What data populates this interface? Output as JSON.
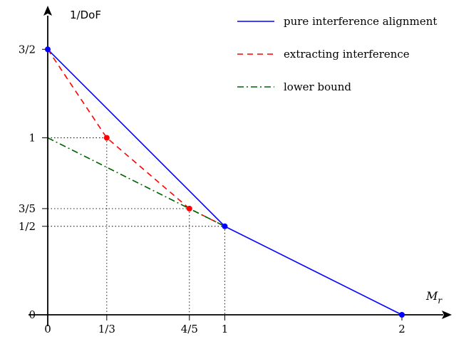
{
  "chart_data": {
    "type": "line",
    "xlabel": "M",
    "xlabel_sub": "r",
    "ylabel": "1/DoF",
    "xlim": [
      0,
      2.2
    ],
    "ylim": [
      0,
      1.5
    ],
    "grid": false,
    "legend_position": "top-right",
    "x_ticks": [
      {
        "value": 0,
        "label": "0"
      },
      {
        "value": 0.3333,
        "label": "1/3"
      },
      {
        "value": 0.8,
        "label": "4/5"
      },
      {
        "value": 1,
        "label": "1"
      },
      {
        "value": 2,
        "label": "2"
      }
    ],
    "y_ticks": [
      {
        "value": 0,
        "label": "0"
      },
      {
        "value": 0.5,
        "label": "1/2"
      },
      {
        "value": 0.6,
        "label": "3/5"
      },
      {
        "value": 1,
        "label": "1"
      },
      {
        "value": 1.5,
        "label": "3/2"
      }
    ],
    "series": [
      {
        "name": "pure interference alignment",
        "color": "#0000ff",
        "style": "solid",
        "points": [
          [
            0,
            1.5
          ],
          [
            1,
            0.5
          ],
          [
            2,
            0
          ]
        ],
        "markers": [
          [
            0,
            1.5
          ],
          [
            1,
            0.5
          ],
          [
            2,
            0
          ]
        ]
      },
      {
        "name": "extracting interference",
        "color": "#ff0000",
        "style": "dashed",
        "points": [
          [
            0,
            1.5
          ],
          [
            0.3333,
            1
          ],
          [
            0.8,
            0.6
          ],
          [
            1,
            0.5
          ]
        ],
        "markers": [
          [
            0.3333,
            1
          ],
          [
            0.8,
            0.6
          ]
        ]
      },
      {
        "name": "lower bound",
        "color": "#006400",
        "style": "dashdot",
        "points": [
          [
            0,
            1
          ],
          [
            1,
            0.5
          ]
        ],
        "markers": []
      }
    ],
    "guide_lines": [
      {
        "x": 0.3333,
        "y": 1
      },
      {
        "x": 0.8,
        "y": 0.6
      },
      {
        "x": 1,
        "y": 0.5
      }
    ]
  }
}
